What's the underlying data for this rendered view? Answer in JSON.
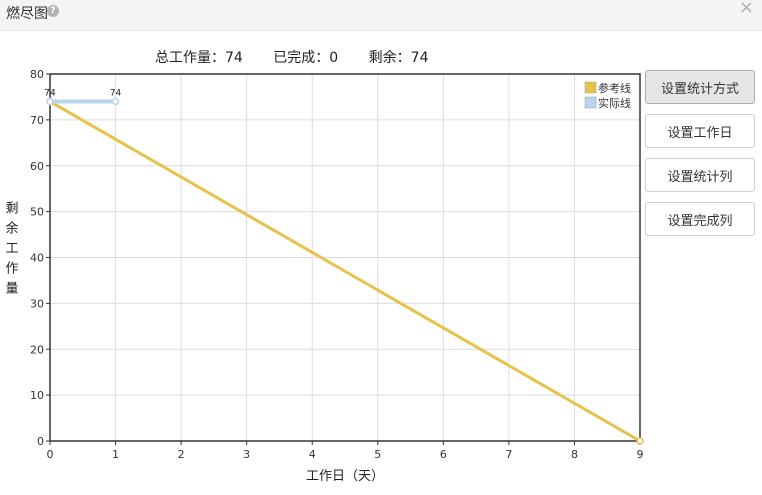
{
  "window": {
    "title": "燃尽图",
    "help_icon": "question-circle-icon",
    "close_icon": "close-icon",
    "close_glyph": "×"
  },
  "summary": {
    "total_label": "总工作量：",
    "total_value": "74",
    "done_label": "已完成：",
    "done_value": "0",
    "remaining_label": "剩余：",
    "remaining_value": "74"
  },
  "buttons": [
    {
      "label": "设置统计方式",
      "active": true
    },
    {
      "label": "设置工作日",
      "active": false
    },
    {
      "label": "设置统计列",
      "active": false
    },
    {
      "label": "设置完成列",
      "active": false
    }
  ],
  "chart_data": {
    "type": "line",
    "xlabel": "工作日（天）",
    "ylabel": "剩余工作量",
    "xlim": [
      0,
      9
    ],
    "ylim": [
      0,
      80
    ],
    "x_ticks": [
      0,
      1,
      2,
      3,
      4,
      5,
      6,
      7,
      8,
      9
    ],
    "y_ticks": [
      0,
      10,
      20,
      30,
      40,
      50,
      60,
      70,
      80
    ],
    "grid": true,
    "legend_position": "top-right",
    "series": [
      {
        "name": "参考线",
        "color": "#e8c14a",
        "x": [
          0,
          9
        ],
        "y": [
          74,
          0
        ],
        "data_labels": []
      },
      {
        "name": "实际线",
        "color": "#b8d4ee",
        "x": [
          0,
          1
        ],
        "y": [
          74,
          74
        ],
        "data_labels": [
          "74",
          "74"
        ]
      }
    ]
  }
}
